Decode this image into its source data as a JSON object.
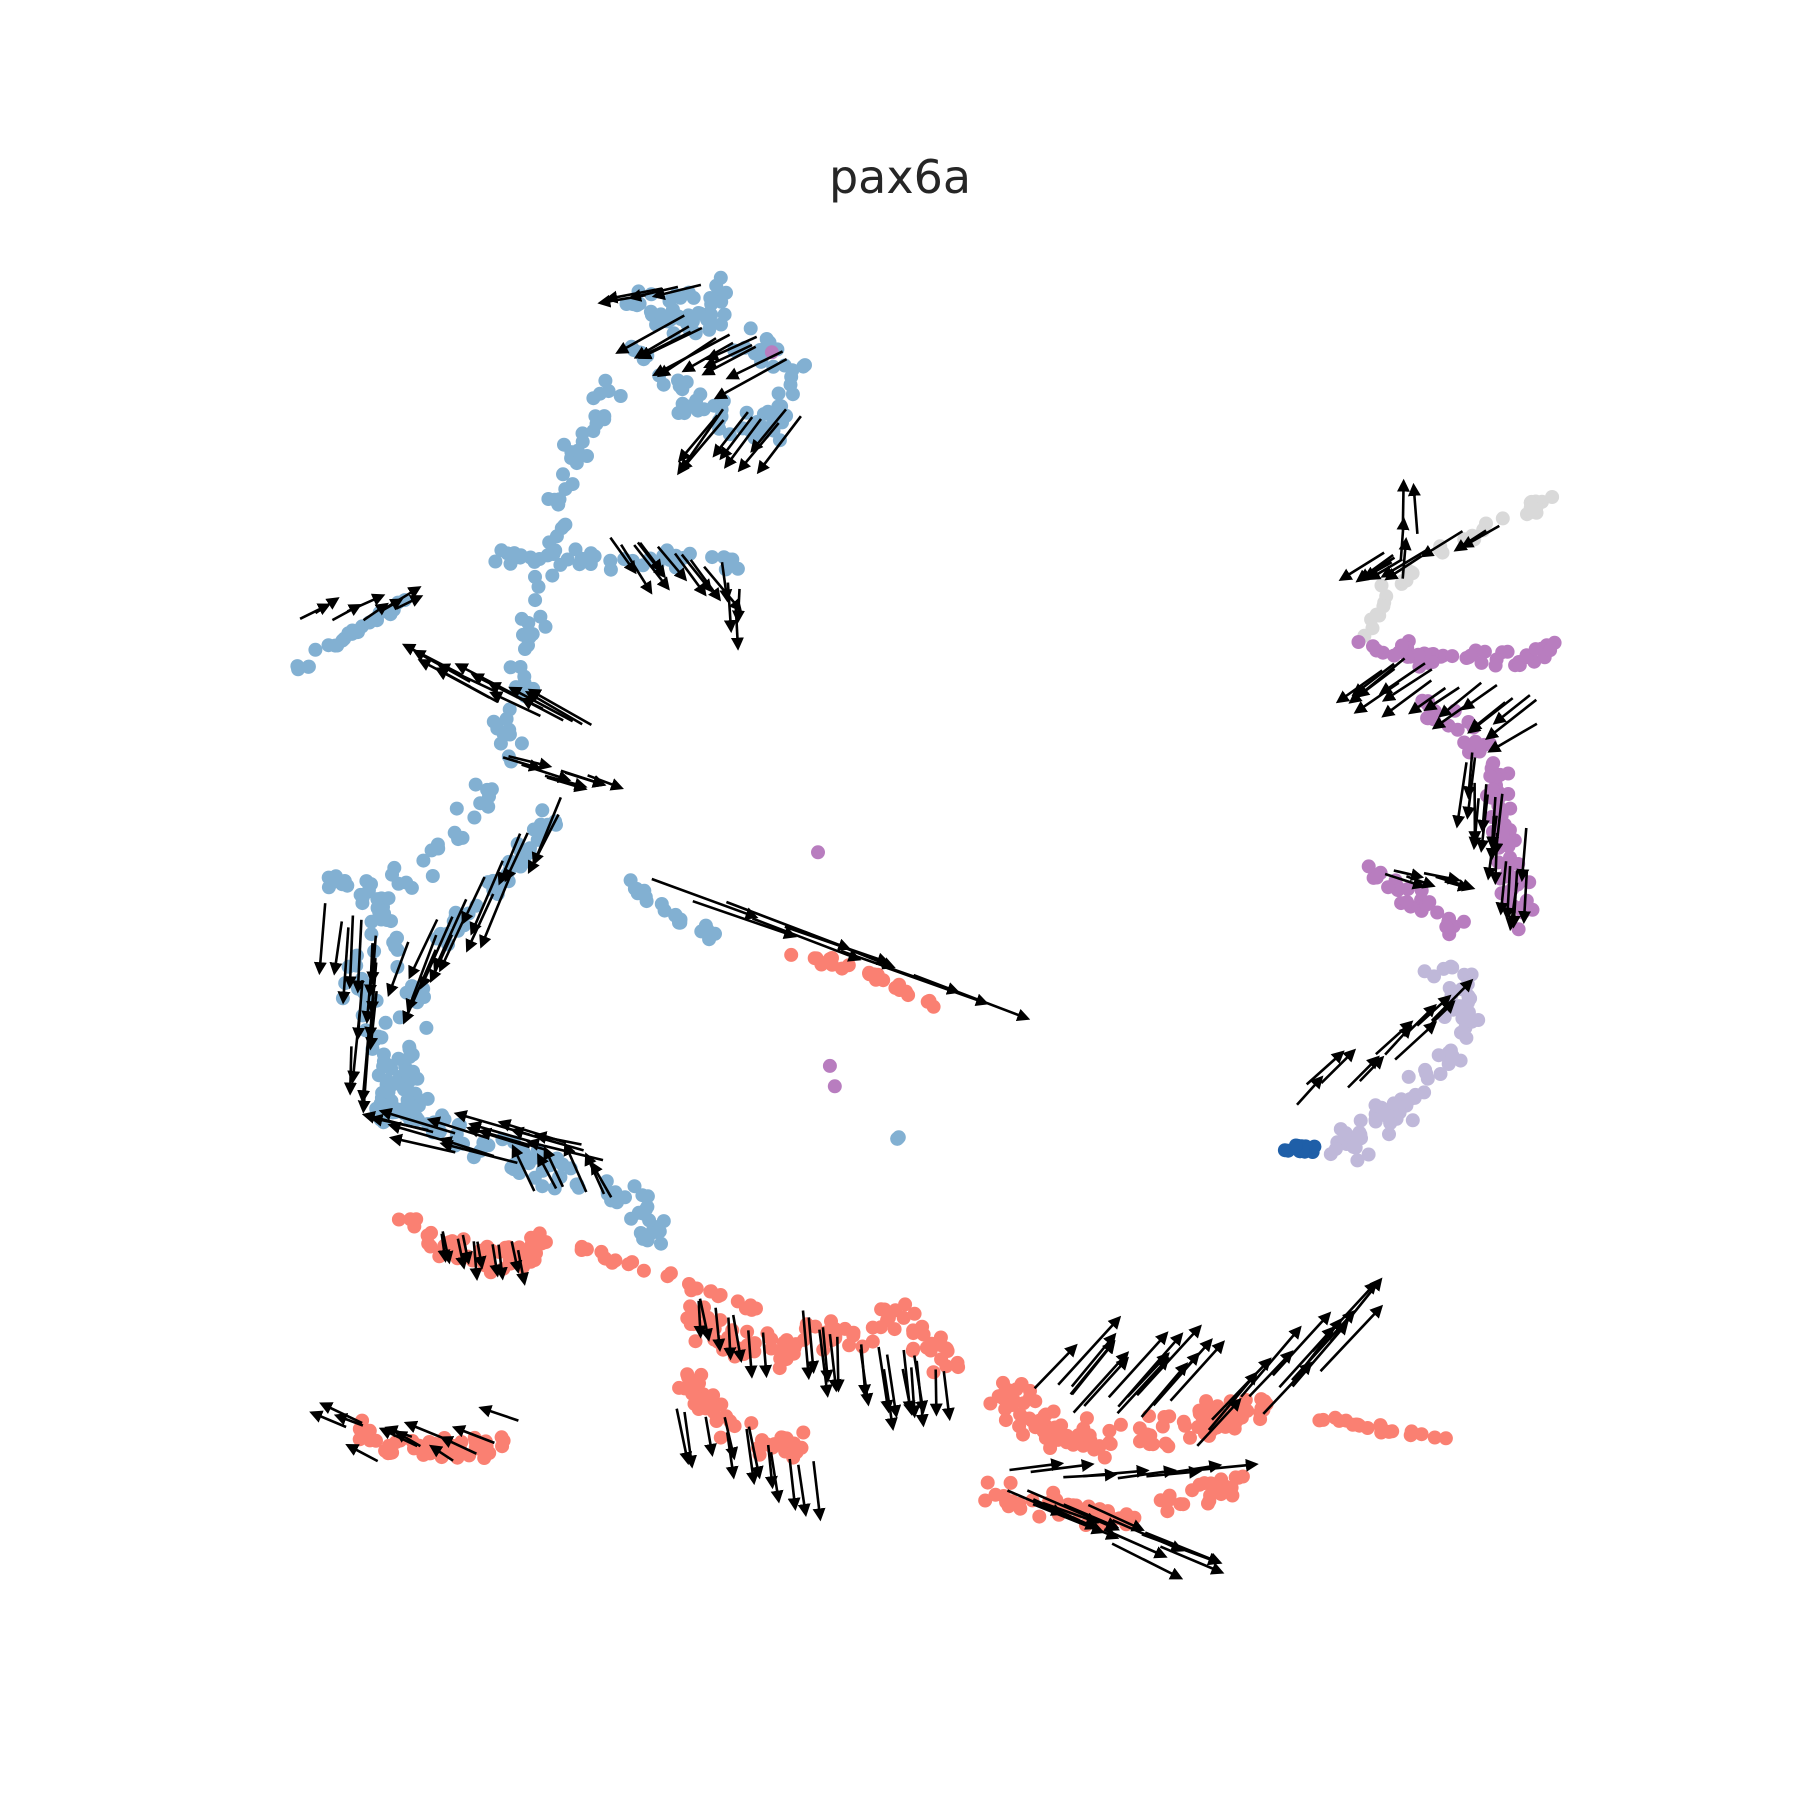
{
  "chart_data": {
    "type": "scatter",
    "title": "pax6a",
    "xlabel": "",
    "ylabel": "",
    "axes_visible": false,
    "grid": false,
    "legend": "none",
    "colors": {
      "steel_blue": "#82b0d2",
      "salmon": "#fa8072",
      "purple": "#b87dbf",
      "lavender": "#bfb8d9",
      "dark_blue": "#1f5fa8",
      "light_gray": "#d9d9d9",
      "arrow": "#000000"
    },
    "cell_groups": [
      {
        "color": "steel_blue",
        "path": [
          [
            718,
            292
          ],
          [
            700,
            300
          ],
          [
            660,
            330
          ],
          [
            620,
            360
          ],
          [
            600,
            420
          ],
          [
            570,
            470
          ],
          [
            560,
            520
          ],
          [
            540,
            580
          ],
          [
            530,
            640
          ],
          [
            520,
            700
          ],
          [
            500,
            780
          ],
          [
            440,
            850
          ],
          [
            380,
            900
          ],
          [
            360,
            980
          ],
          [
            380,
            1060
          ],
          [
            420,
            1100
          ]
        ],
        "spread": 22,
        "n": 160
      },
      {
        "color": "steel_blue",
        "path": [
          [
            620,
            300
          ],
          [
            690,
            310
          ],
          [
            760,
            340
          ],
          [
            790,
            380
          ],
          [
            770,
            430
          ],
          [
            720,
            420
          ],
          [
            660,
            380
          ]
        ],
        "spread": 28,
        "n": 90
      },
      {
        "color": "steel_blue",
        "path": [
          [
            500,
            560
          ],
          [
            580,
            560
          ],
          [
            660,
            560
          ],
          [
            740,
            565
          ]
        ],
        "spread": 16,
        "n": 40
      },
      {
        "color": "steel_blue",
        "path": [
          [
            290,
            680
          ],
          [
            340,
            640
          ],
          [
            410,
            600
          ]
        ],
        "spread": 9,
        "n": 25
      },
      {
        "color": "steel_blue",
        "path": [
          [
            330,
            880
          ],
          [
            380,
            900
          ],
          [
            420,
            1000
          ],
          [
            400,
            1080
          ],
          [
            380,
            1120
          ]
        ],
        "spread": 20,
        "n": 70
      },
      {
        "color": "steel_blue",
        "path": [
          [
            560,
            810
          ],
          [
            520,
            860
          ],
          [
            480,
            900
          ],
          [
            440,
            940
          ]
        ],
        "spread": 16,
        "n": 45
      },
      {
        "color": "steel_blue",
        "path": [
          [
            400,
            1110
          ],
          [
            470,
            1140
          ],
          [
            560,
            1170
          ],
          [
            630,
            1200
          ],
          [
            660,
            1240
          ]
        ],
        "spread": 24,
        "n": 80
      },
      {
        "color": "steel_blue",
        "path": [
          [
            620,
            880
          ],
          [
            680,
            920
          ],
          [
            730,
            945
          ]
        ],
        "spread": 10,
        "n": 20
      },
      {
        "color": "steel_blue",
        "path": [
          [
            895,
            1138
          ],
          [
            902,
            1140
          ]
        ],
        "spread": 4,
        "n": 3
      },
      {
        "color": "salmon",
        "path": [
          [
            780,
            950
          ],
          [
            830,
            960
          ],
          [
            880,
            980
          ],
          [
            940,
            1010
          ]
        ],
        "spread": 8,
        "n": 25
      },
      {
        "color": "salmon",
        "path": [
          [
            400,
            1220
          ],
          [
            450,
            1250
          ],
          [
            510,
            1260
          ],
          [
            540,
            1240
          ]
        ],
        "spread": 20,
        "n": 60
      },
      {
        "color": "salmon",
        "path": [
          [
            580,
            1250
          ],
          [
            650,
            1270
          ],
          [
            700,
            1290
          ],
          [
            760,
            1310
          ]
        ],
        "spread": 10,
        "n": 25
      },
      {
        "color": "salmon",
        "path": [
          [
            690,
            1320
          ],
          [
            750,
            1350
          ],
          [
            820,
            1340
          ],
          [
            900,
            1320
          ],
          [
            950,
            1360
          ]
        ],
        "spread": 30,
        "n": 90
      },
      {
        "color": "salmon",
        "path": [
          [
            680,
            1380
          ],
          [
            720,
            1420
          ],
          [
            770,
            1450
          ],
          [
            810,
            1440
          ]
        ],
        "spread": 22,
        "n": 50
      },
      {
        "color": "salmon",
        "path": [
          [
            1000,
            1390
          ],
          [
            1040,
            1420
          ],
          [
            1080,
            1440
          ],
          [
            1140,
            1440
          ],
          [
            1220,
            1420
          ],
          [
            1260,
            1410
          ]
        ],
        "spread": 28,
        "n": 120
      },
      {
        "color": "salmon",
        "path": [
          [
            1000,
            1490
          ],
          [
            1060,
            1510
          ],
          [
            1120,
            1520
          ],
          [
            1200,
            1500
          ],
          [
            1240,
            1480
          ]
        ],
        "spread": 22,
        "n": 70
      },
      {
        "color": "salmon",
        "path": [
          [
            1320,
            1418
          ],
          [
            1380,
            1428
          ],
          [
            1450,
            1440
          ]
        ],
        "spread": 7,
        "n": 20
      },
      {
        "color": "salmon",
        "path": [
          [
            350,
            1430
          ],
          [
            400,
            1450
          ],
          [
            460,
            1450
          ],
          [
            510,
            1440
          ]
        ],
        "spread": 16,
        "n": 50
      },
      {
        "color": "light_gray",
        "path": [
          [
            1370,
            630
          ],
          [
            1390,
            590
          ],
          [
            1420,
            560
          ],
          [
            1470,
            535
          ],
          [
            1530,
            510
          ],
          [
            1545,
            500
          ]
        ],
        "spread": 14,
        "n": 40
      },
      {
        "color": "purple",
        "path": [
          [
            1370,
            650
          ],
          [
            1430,
            660
          ],
          [
            1500,
            660
          ],
          [
            1560,
            650
          ]
        ],
        "spread": 18,
        "n": 45
      },
      {
        "color": "purple",
        "path": [
          [
            1420,
            700
          ],
          [
            1470,
            740
          ],
          [
            1500,
            780
          ],
          [
            1500,
            830
          ],
          [
            1510,
            880
          ],
          [
            1520,
            920
          ]
        ],
        "spread": 24,
        "n": 80
      },
      {
        "color": "purple",
        "path": [
          [
            1360,
            870
          ],
          [
            1400,
            890
          ],
          [
            1430,
            910
          ],
          [
            1460,
            930
          ]
        ],
        "spread": 14,
        "n": 30
      },
      {
        "color": "lavender",
        "path": [
          [
            1430,
            960
          ],
          [
            1470,
            1000
          ],
          [
            1450,
            1050
          ],
          [
            1420,
            1090
          ],
          [
            1380,
            1120
          ],
          [
            1340,
            1150
          ]
        ],
        "spread": 24,
        "n": 80
      },
      {
        "color": "dark_blue",
        "path": [
          [
            1270,
            1145
          ],
          [
            1300,
            1148
          ],
          [
            1320,
            1150
          ]
        ],
        "spread": 6,
        "n": 14
      },
      {
        "color": "purple",
        "path": [
          [
            770,
            306
          ],
          [
            850,
            1280
          ]
        ],
        "spread": 6,
        "n": 4
      }
    ],
    "arrow_groups": [
      {
        "path": [
          [
            700,
            285
          ],
          [
            640,
            290
          ]
        ],
        "spread": 12,
        "n": 4,
        "dx": -50,
        "dy": 10
      },
      {
        "path": [
          [
            680,
            320
          ],
          [
            780,
            350
          ]
        ],
        "spread": 20,
        "n": 12,
        "dx": -60,
        "dy": 32
      },
      {
        "path": [
          [
            720,
            410
          ],
          [
            790,
            420
          ]
        ],
        "spread": 24,
        "n": 9,
        "dx": -40,
        "dy": 50
      },
      {
        "path": [
          [
            610,
            540
          ],
          [
            700,
            560
          ]
        ],
        "spread": 16,
        "n": 10,
        "dx": 30,
        "dy": 40
      },
      {
        "path": [
          [
            720,
            565
          ],
          [
            740,
            600
          ]
        ],
        "spread": 10,
        "n": 4,
        "dx": 2,
        "dy": 40
      },
      {
        "path": [
          [
            300,
            620
          ],
          [
            400,
            610
          ]
        ],
        "spread": 14,
        "n": 8,
        "dx": 30,
        "dy": -16
      },
      {
        "path": [
          [
            450,
            680
          ],
          [
            600,
            730
          ]
        ],
        "spread": 20,
        "n": 14,
        "dx": -50,
        "dy": -26
      },
      {
        "path": [
          [
            500,
            760
          ],
          [
            590,
            780
          ]
        ],
        "spread": 18,
        "n": 8,
        "dx": 40,
        "dy": 12
      },
      {
        "path": [
          [
            560,
            800
          ],
          [
            470,
            900
          ],
          [
            420,
            940
          ]
        ],
        "spread": 20,
        "n": 16,
        "dx": -26,
        "dy": 60
      },
      {
        "path": [
          [
            330,
            900
          ],
          [
            380,
            950
          ],
          [
            360,
            1050
          ]
        ],
        "spread": 22,
        "n": 16,
        "dx": -4,
        "dy": 60
      },
      {
        "path": [
          [
            430,
            1130
          ],
          [
            520,
            1150
          ],
          [
            600,
            1140
          ]
        ],
        "spread": 28,
        "n": 16,
        "dx": -60,
        "dy": -16
      },
      {
        "path": [
          [
            540,
            1180
          ],
          [
            620,
            1200
          ]
        ],
        "spread": 20,
        "n": 6,
        "dx": -20,
        "dy": -40
      },
      {
        "path": [
          [
            440,
            1230
          ],
          [
            520,
            1250
          ]
        ],
        "spread": 14,
        "n": 10,
        "dx": 4,
        "dy": 30
      },
      {
        "path": [
          [
            660,
            880
          ],
          [
            780,
            930
          ],
          [
            910,
            980
          ]
        ],
        "spread": 20,
        "n": 9,
        "dx": 110,
        "dy": 40
      },
      {
        "path": [
          [
            690,
            1300
          ],
          [
            760,
            1330
          ]
        ],
        "spread": 14,
        "n": 7,
        "dx": 4,
        "dy": 40
      },
      {
        "path": [
          [
            800,
            1310
          ],
          [
            880,
            1350
          ],
          [
            940,
            1370
          ]
        ],
        "spread": 24,
        "n": 18,
        "dx": 6,
        "dy": 56
      },
      {
        "path": [
          [
            680,
            1400
          ],
          [
            750,
            1440
          ],
          [
            810,
            1470
          ]
        ],
        "spread": 22,
        "n": 12,
        "dx": 8,
        "dy": 48
      },
      {
        "path": [
          [
            1040,
            1380
          ],
          [
            1100,
            1400
          ],
          [
            1180,
            1420
          ],
          [
            1260,
            1400
          ],
          [
            1320,
            1360
          ]
        ],
        "spread": 34,
        "n": 30,
        "dx": 50,
        "dy": -56
      },
      {
        "path": [
          [
            1000,
            1490
          ],
          [
            1080,
            1510
          ],
          [
            1160,
            1540
          ]
        ],
        "spread": 24,
        "n": 14,
        "dx": 70,
        "dy": 30
      },
      {
        "path": [
          [
            1010,
            1470
          ],
          [
            1100,
            1480
          ],
          [
            1200,
            1470
          ]
        ],
        "spread": 10,
        "n": 8,
        "dx": 60,
        "dy": -6
      },
      {
        "path": [
          [
            340,
            1430
          ],
          [
            420,
            1450
          ],
          [
            510,
            1440
          ]
        ],
        "spread": 26,
        "n": 12,
        "dx": -30,
        "dy": -14
      },
      {
        "path": [
          [
            1380,
            560
          ],
          [
            1410,
            560
          ],
          [
            1500,
            520
          ]
        ],
        "spread": 18,
        "n": 10,
        "dx": -36,
        "dy": 24
      },
      {
        "path": [
          [
            1400,
            580
          ],
          [
            1400,
            540
          ],
          [
            1420,
            530
          ]
        ],
        "spread": 14,
        "n": 4,
        "dx": 0,
        "dy": -40
      },
      {
        "path": [
          [
            1380,
            660
          ],
          [
            1450,
            680
          ],
          [
            1550,
            700
          ]
        ],
        "spread": 30,
        "n": 18,
        "dx": -40,
        "dy": 30
      },
      {
        "path": [
          [
            1470,
            760
          ],
          [
            1500,
            810
          ],
          [
            1520,
            880
          ]
        ],
        "spread": 22,
        "n": 18,
        "dx": -4,
        "dy": 50
      },
      {
        "path": [
          [
            1380,
            870
          ],
          [
            1450,
            880
          ]
        ],
        "spread": 12,
        "n": 6,
        "dx": 30,
        "dy": 10
      },
      {
        "path": [
          [
            1300,
            1100
          ],
          [
            1380,
            1060
          ],
          [
            1430,
            1020
          ]
        ],
        "spread": 20,
        "n": 12,
        "dx": 30,
        "dy": -30
      }
    ]
  }
}
